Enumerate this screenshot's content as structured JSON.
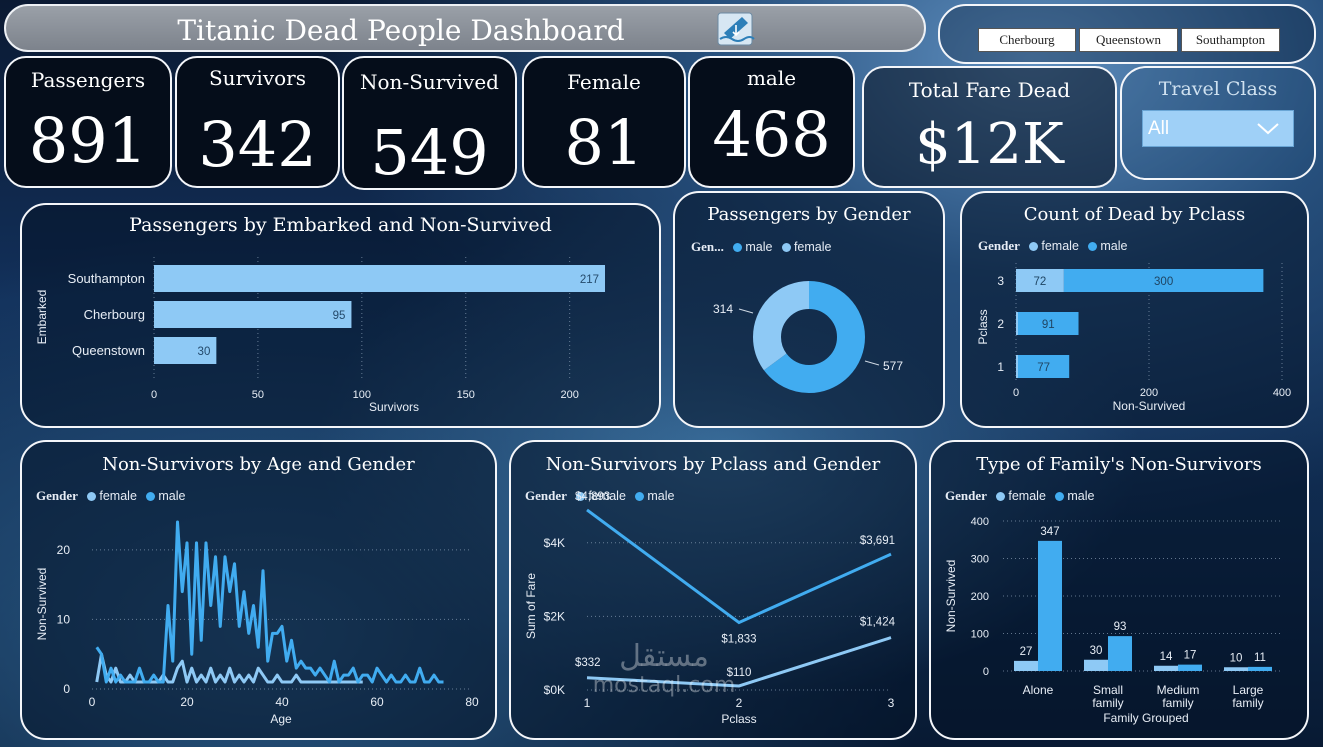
{
  "header": {
    "title": "Titanic Dead People Dashboard",
    "icon": "sinking-ship-icon"
  },
  "embark_slicer": {
    "options": [
      "Cherbourg",
      "Queenstown",
      "Southampton"
    ]
  },
  "kpis": [
    {
      "label": "Passengers",
      "value": "891"
    },
    {
      "label": "Survivors",
      "value": "342"
    },
    {
      "label": "Non-Survived",
      "value": "549"
    },
    {
      "label": "Female",
      "value": "81"
    },
    {
      "label": "male",
      "value": "468"
    }
  ],
  "total_fare": {
    "label": "Total Fare Dead",
    "value": "$12K"
  },
  "travel_class": {
    "label": "Travel Class",
    "selected": "All"
  },
  "colors": {
    "female": "#8ec9f5",
    "male": "#41acf0"
  },
  "watermark": {
    "arabic": "مستقل",
    "latin": "mostaql.com"
  },
  "chart_data": [
    {
      "type": "bar",
      "orientation": "horizontal",
      "title": "Passengers by Embarked and Non-Survived",
      "categories": [
        "Southampton",
        "Cherbourg",
        "Queenstown"
      ],
      "values": [
        217,
        95,
        30
      ],
      "xlabel": "Survivors",
      "ylabel": "Embarked",
      "xticks": [
        "0",
        "50",
        "100",
        "150",
        "200"
      ],
      "xlim": [
        0,
        217
      ]
    },
    {
      "type": "pie",
      "variant": "donut",
      "title": "Passengers by Gender",
      "legend_title": "Gen...",
      "slices": [
        {
          "name": "male",
          "value": 577
        },
        {
          "name": "female",
          "value": 314
        }
      ]
    },
    {
      "type": "bar",
      "orientation": "horizontal",
      "stacked": true,
      "title": "Count of Dead by Pclass",
      "legend_title": "Gender",
      "categories": [
        "3",
        "2",
        "1"
      ],
      "series": [
        {
          "name": "female",
          "values": [
            72,
            null,
            null
          ]
        },
        {
          "name": "male",
          "values": [
            300,
            91,
            77
          ]
        }
      ],
      "xlabel": "Non-Survived",
      "ylabel": "Pclass",
      "xticks": [
        "0",
        "200",
        "400"
      ],
      "xlim": [
        0,
        400
      ]
    },
    {
      "type": "line",
      "title": "Non-Survivors by Age and Gender",
      "legend_title": "Gender",
      "xlabel": "Age",
      "ylabel": "Non-Survived",
      "xlim": [
        0,
        80
      ],
      "ylim": [
        0,
        24
      ],
      "xticks": [
        "0",
        "20",
        "40",
        "60",
        "80"
      ],
      "yticks": [
        "0",
        "10",
        "20"
      ],
      "series": [
        {
          "name": "female",
          "x": [
            1,
            2,
            3,
            4,
            5,
            6,
            7,
            8,
            9,
            10,
            11,
            12,
            13,
            14,
            15,
            16,
            17,
            18,
            19,
            20,
            21,
            22,
            23,
            24,
            25,
            26,
            27,
            28,
            29,
            30,
            31,
            32,
            33,
            34,
            35,
            36,
            37,
            38,
            39,
            40,
            41,
            42,
            43,
            44,
            45,
            46,
            47,
            48,
            49,
            50,
            51,
            52,
            53,
            54,
            55,
            56,
            57
          ],
          "y": [
            1,
            5,
            2,
            1,
            3,
            1,
            1,
            2,
            1,
            1,
            1,
            1,
            1,
            1,
            2,
            1,
            1,
            3,
            4,
            1,
            3,
            1,
            2,
            1,
            3,
            1,
            2,
            1,
            3,
            1,
            2,
            1,
            2,
            1,
            3,
            2,
            1,
            1,
            2,
            1,
            1,
            1,
            2,
            1,
            1,
            1,
            1,
            1,
            1,
            1,
            1,
            1,
            1,
            1,
            1,
            1,
            1
          ]
        },
        {
          "name": "male",
          "x": [
            1,
            2,
            3,
            4,
            5,
            6,
            7,
            8,
            9,
            10,
            11,
            12,
            13,
            14,
            15,
            16,
            17,
            18,
            19,
            20,
            21,
            22,
            23,
            24,
            25,
            26,
            27,
            28,
            29,
            30,
            31,
            32,
            33,
            34,
            35,
            36,
            37,
            38,
            39,
            40,
            41,
            42,
            43,
            44,
            45,
            46,
            47,
            48,
            49,
            50,
            51,
            52,
            53,
            54,
            55,
            56,
            57,
            58,
            59,
            60,
            61,
            62,
            63,
            64,
            65,
            66,
            67,
            68,
            69,
            70,
            71,
            72,
            73,
            74
          ],
          "y": [
            6,
            5,
            1,
            3,
            1,
            2,
            1,
            1,
            1,
            3,
            1,
            1,
            2,
            1,
            1,
            12,
            4,
            24,
            14,
            21,
            5,
            21,
            7,
            21,
            12,
            19,
            9,
            19,
            14,
            18,
            9,
            14,
            8,
            12,
            6,
            17,
            4,
            8,
            8,
            9,
            4,
            7,
            3,
            4,
            3,
            3,
            2,
            3,
            2,
            1,
            4,
            1,
            2,
            2,
            3,
            1,
            2,
            2,
            1,
            3,
            2,
            1,
            2,
            1,
            1,
            2,
            1,
            1,
            3,
            1,
            1,
            2,
            1,
            1
          ]
        }
      ]
    },
    {
      "type": "line",
      "title": "Non-Survivors by Pclass and Gender",
      "legend_title": "Gender",
      "xlabel": "Pclass",
      "ylabel": "Sum of Fare",
      "categories": [
        "1",
        "2",
        "3"
      ],
      "yticks": [
        "$0K",
        "$2K",
        "$4K"
      ],
      "ylim": [
        0,
        5000
      ],
      "series": [
        {
          "name": "female",
          "values": [
            332,
            110,
            1424
          ],
          "labels": [
            "$332",
            "$110",
            "$1,424"
          ]
        },
        {
          "name": "male",
          "values": [
            4893,
            1833,
            3691
          ],
          "labels": [
            "$4,893",
            "$1,833",
            "$3,691"
          ]
        }
      ]
    },
    {
      "type": "bar",
      "title": "Type of Family's Non-Survivors",
      "legend_title": "Gender",
      "categories": [
        "Alone",
        "Small family",
        "Medium family",
        "Large family"
      ],
      "category_lines": [
        [
          "Alone"
        ],
        [
          "Small",
          "family"
        ],
        [
          "Medium",
          "family"
        ],
        [
          "Large",
          "family"
        ]
      ],
      "series": [
        {
          "name": "female",
          "values": [
            27,
            30,
            14,
            10
          ]
        },
        {
          "name": "male",
          "values": [
            347,
            93,
            17,
            11
          ]
        }
      ],
      "xlabel": "Family Grouped",
      "ylabel": "Non-Survived",
      "yticks": [
        "0",
        "100",
        "200",
        "300",
        "400"
      ],
      "ylim": [
        0,
        400
      ]
    }
  ]
}
